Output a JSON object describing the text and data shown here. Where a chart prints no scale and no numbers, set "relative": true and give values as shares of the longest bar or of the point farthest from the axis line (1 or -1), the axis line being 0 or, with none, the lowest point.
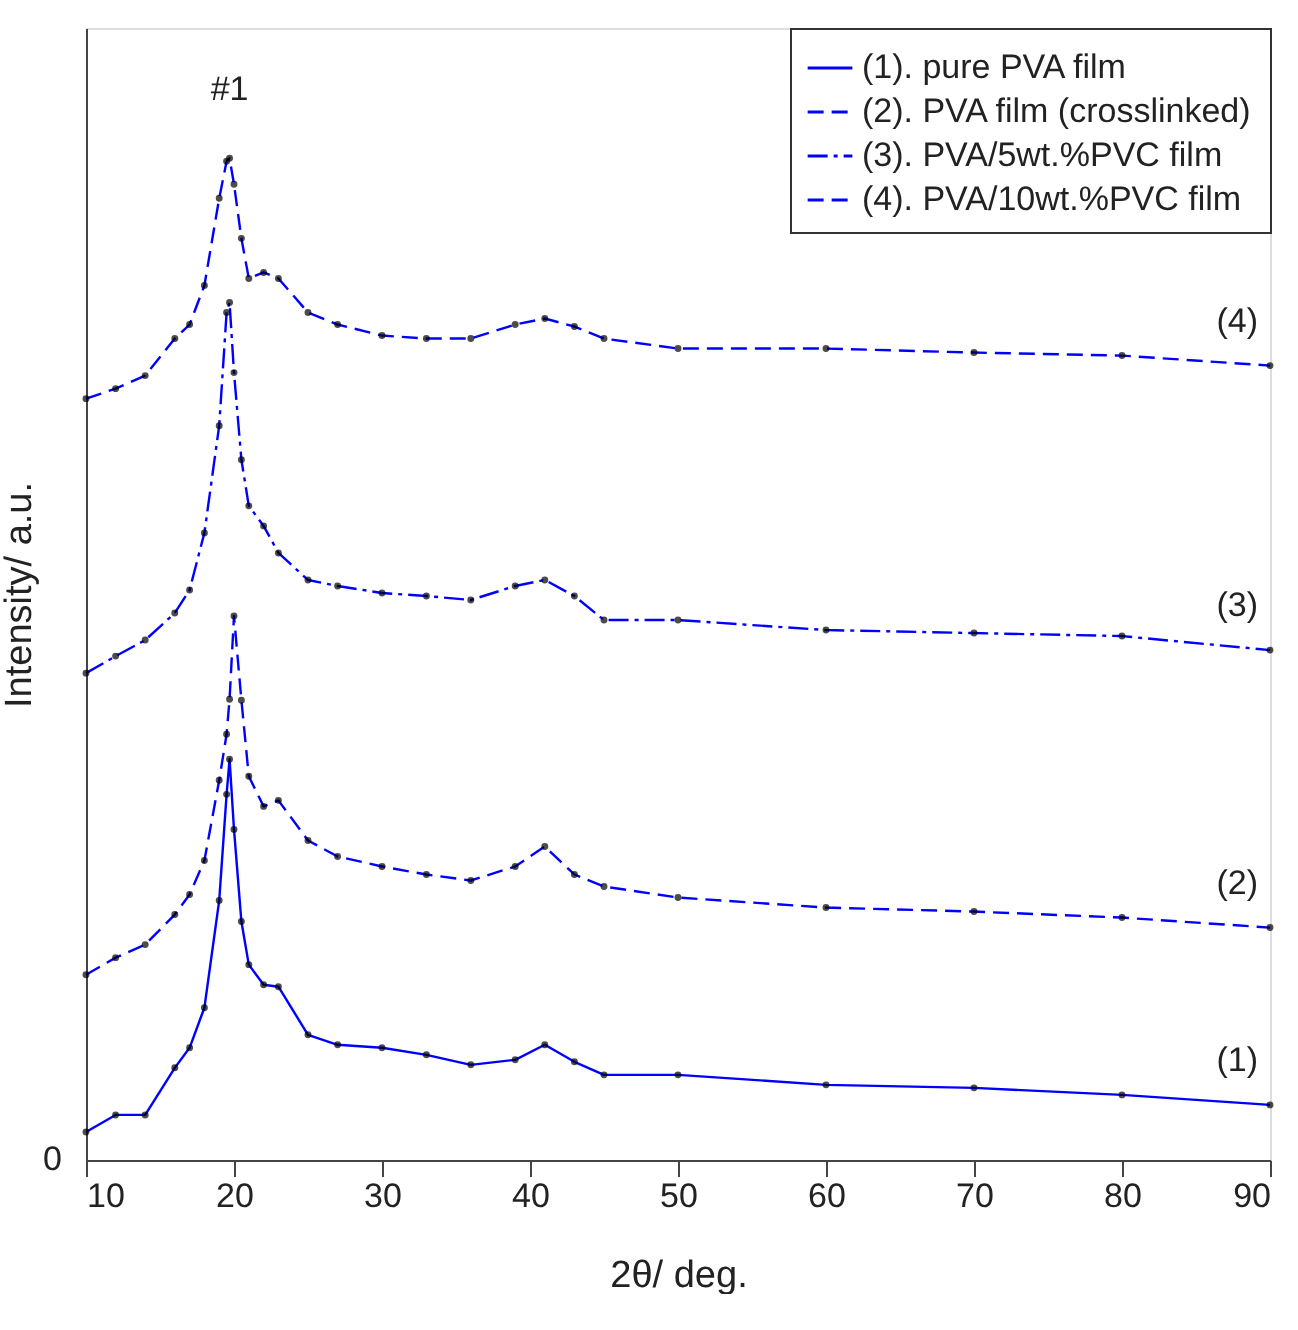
{
  "chart_data": {
    "type": "line",
    "relative": true,
    "xlabel": "2θ/ deg.",
    "ylabel": "Intensity/ a.u.",
    "xlim": [
      10,
      90
    ],
    "xticks": [
      10,
      20,
      30,
      40,
      50,
      60,
      70,
      80,
      90
    ],
    "grid": false,
    "legend": "top right",
    "marker": "circle",
    "x": [
      10,
      12,
      14,
      16,
      17,
      18,
      19,
      19.5,
      19.7,
      20,
      20.5,
      21,
      22,
      23,
      25,
      27,
      30,
      33,
      36,
      39,
      41,
      43,
      45,
      50,
      60,
      70,
      80,
      90
    ],
    "series": [
      {
        "name": "(1). pure PVA film",
        "color": "#0000ff",
        "line_style": "solid",
        "values": [
          0.028,
          0.045,
          0.045,
          0.092,
          0.112,
          0.152,
          0.259,
          0.365,
          0.4,
          0.33,
          0.238,
          0.195,
          0.175,
          0.173,
          0.125,
          0.115,
          0.112,
          0.105,
          0.095,
          0.1,
          0.115,
          0.098,
          0.085,
          0.085,
          0.075,
          0.072,
          0.065,
          0.055
        ]
      },
      {
        "name": "(2). PVA film (crosslinked)",
        "color": "#0000ff",
        "line_style": "dashed",
        "values": [
          0.185,
          0.202,
          0.215,
          0.245,
          0.265,
          0.299,
          0.379,
          0.425,
          0.46,
          0.543,
          0.459,
          0.383,
          0.353,
          0.359,
          0.319,
          0.303,
          0.293,
          0.285,
          0.279,
          0.293,
          0.313,
          0.285,
          0.273,
          0.262,
          0.252,
          0.248,
          0.242,
          0.232
        ]
      },
      {
        "name": "(3). PVA/5wt.%PVC film",
        "color": "#0000ff",
        "line_style": "dashdot",
        "values": [
          0.486,
          0.503,
          0.519,
          0.546,
          0.569,
          0.626,
          0.733,
          0.846,
          0.856,
          0.786,
          0.699,
          0.653,
          0.633,
          0.606,
          0.579,
          0.573,
          0.566,
          0.563,
          0.559,
          0.573,
          0.579,
          0.563,
          0.539,
          0.539,
          0.529,
          0.526,
          0.523,
          0.509
        ]
      },
      {
        "name": "(4). PVA/10wt.%PVC film",
        "color": "#0000ff",
        "line_style": "dashed",
        "values": [
          0.76,
          0.77,
          0.783,
          0.82,
          0.834,
          0.873,
          0.96,
          0.997,
          1,
          0.974,
          0.92,
          0.88,
          0.886,
          0.88,
          0.846,
          0.834,
          0.823,
          0.82,
          0.82,
          0.834,
          0.84,
          0.832,
          0.82,
          0.81,
          0.81,
          0.806,
          0.803,
          0.793
        ]
      }
    ],
    "annotations": [
      "#1",
      "(1)",
      "(2)",
      "(3)",
      "(4)",
      "0"
    ]
  }
}
